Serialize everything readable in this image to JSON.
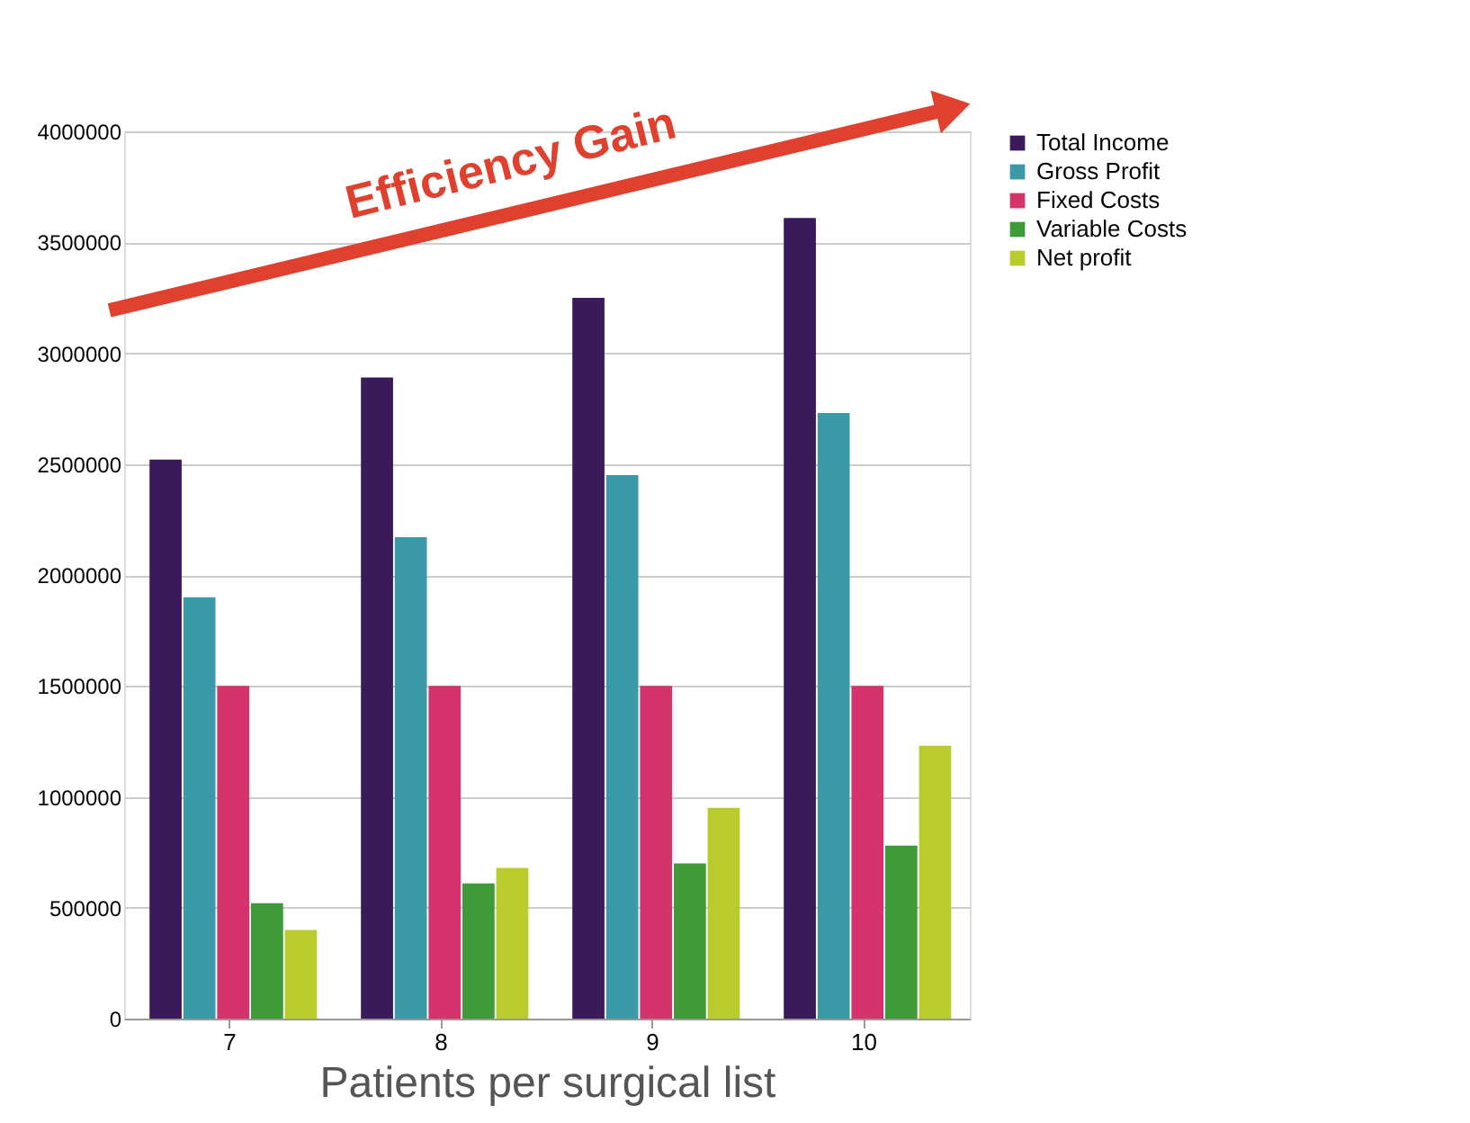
{
  "chart_data": {
    "type": "bar",
    "xlabel": "Patients per surgical list",
    "categories": [
      "7",
      "8",
      "9",
      "10"
    ],
    "series": [
      {
        "name": "Total Income",
        "color": "#3b1a5c",
        "values": [
          2520000,
          2890000,
          3250000,
          3610000
        ]
      },
      {
        "name": "Gross Profit",
        "color": "#3c9aa8",
        "values": [
          1900000,
          2170000,
          2450000,
          2730000
        ]
      },
      {
        "name": "Fixed Costs",
        "color": "#d4336c",
        "values": [
          1500000,
          1500000,
          1500000,
          1500000
        ]
      },
      {
        "name": "Variable Costs",
        "color": "#3f9b3a",
        "values": [
          520000,
          610000,
          700000,
          780000
        ]
      },
      {
        "name": "Net profit",
        "color": "#b9cc2b",
        "values": [
          400000,
          680000,
          950000,
          1230000
        ]
      }
    ],
    "ylim": [
      0,
      4000000
    ],
    "yticks": [
      0,
      500000,
      1000000,
      1500000,
      2000000,
      2500000,
      3000000,
      3500000,
      4000000
    ],
    "grid": "y",
    "legend": "right",
    "annotations": [
      "Efficiency Gain"
    ]
  }
}
